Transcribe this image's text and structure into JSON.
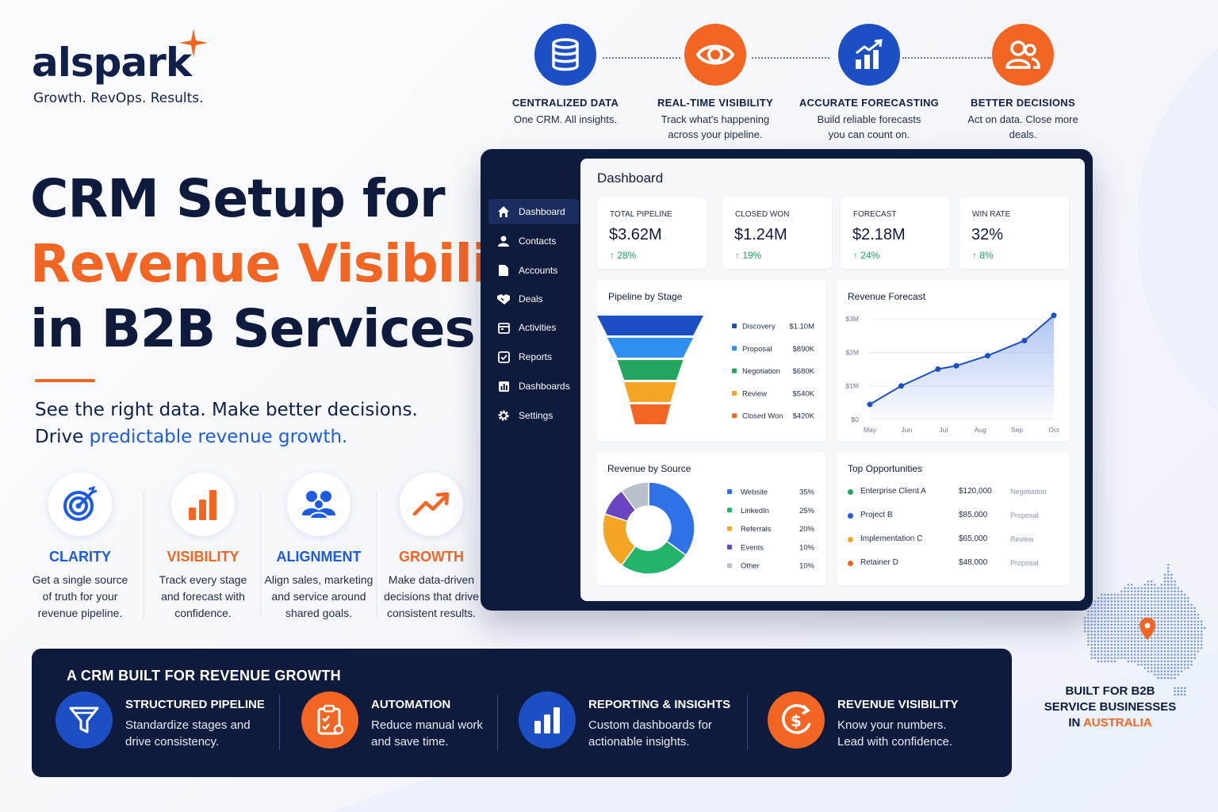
{
  "brand": {
    "name": "alspark",
    "tagline": "Growth. RevOps. Results."
  },
  "headline": {
    "line1": "CRM Setup for",
    "line2": "Revenue Visibility",
    "line3": "in B2B Services"
  },
  "subhead": {
    "line1": "See the right data. Make better decisions.",
    "line2_prefix": "Drive ",
    "line2_highlight": "predictable revenue growth."
  },
  "pillars": [
    {
      "title": "CLARITY",
      "icon": "target-icon",
      "color": "#1d5be0",
      "d1": "Get a single source",
      "d2": "of truth for your",
      "d3": "revenue pipeline."
    },
    {
      "title": "VISIBILITY",
      "icon": "bar-chart-icon",
      "color": "#f26522",
      "d1": "Track every stage",
      "d2": "and forecast with",
      "d3": "confidence."
    },
    {
      "title": "ALIGNMENT",
      "icon": "team-icon",
      "color": "#1d5be0",
      "d1": "Align sales, marketing",
      "d2": "and service around",
      "d3": "shared goals."
    },
    {
      "title": "GROWTH",
      "icon": "trend-up-icon",
      "color": "#f26522",
      "d1": "Make data-driven",
      "d2": "decisions that drive",
      "d3": "consistent results."
    }
  ],
  "steps": [
    {
      "title": "CENTRALIZED DATA",
      "d1": "One CRM. All insights.",
      "d2": "",
      "icon": "database-icon",
      "color": "#1d4fc4"
    },
    {
      "title": "REAL-TIME VISIBILITY",
      "d1": "Track what's happening",
      "d2": "across your pipeline.",
      "icon": "eye-icon",
      "color": "#f26522"
    },
    {
      "title": "ACCURATE FORECASTING",
      "d1": "Build reliable forecasts",
      "d2": "you can count on.",
      "icon": "growth-chart-icon",
      "color": "#1d4fc4"
    },
    {
      "title": "BETTER DECISIONS",
      "d1": "Act on data. Close more",
      "d2": "deals.",
      "icon": "users-icon",
      "color": "#f26522"
    }
  ],
  "dashboard": {
    "title": "Dashboard",
    "nav": [
      {
        "label": "Dashboard",
        "icon": "home-icon",
        "active": true
      },
      {
        "label": "Contacts",
        "icon": "person-icon"
      },
      {
        "label": "Accounts",
        "icon": "document-icon"
      },
      {
        "label": "Deals",
        "icon": "handshake-icon"
      },
      {
        "label": "Activities",
        "icon": "calendar-icon"
      },
      {
        "label": "Reports",
        "icon": "checkbox-icon"
      },
      {
        "label": "Dashboards",
        "icon": "dashboards-icon"
      },
      {
        "label": "Settings",
        "icon": "gear-icon"
      }
    ],
    "kpis": [
      {
        "label": "TOTAL PIPELINE",
        "value": "$3.62M",
        "change": "↑ 28%"
      },
      {
        "label": "CLOSED WON",
        "value": "$1.24M",
        "change": "↑ 19%"
      },
      {
        "label": "FORECAST",
        "value": "$2.18M",
        "change": "↑ 24%"
      },
      {
        "label": "WIN RATE",
        "value": "32%",
        "change": "↑ 8%"
      }
    ],
    "pipeline_title": "Pipeline by Stage",
    "forecast_title": "Revenue Forecast",
    "source_title": "Revenue by Source",
    "opps_title": "Top Opportunities",
    "opportunities": [
      {
        "name": "Enterprise Client A",
        "value": "$120,000",
        "stage": "Negotiation",
        "color": "#22a55e"
      },
      {
        "name": "Project B",
        "value": "$85,000",
        "stage": "Proposal",
        "color": "#1d5be0"
      },
      {
        "name": "Implementation C",
        "value": "$65,000",
        "stage": "Review",
        "color": "#f5a524"
      },
      {
        "name": "Retainer D",
        "value": "$48,000",
        "stage": "Proposal",
        "color": "#f26522"
      }
    ]
  },
  "chart_data": [
    {
      "type": "funnel",
      "title": "Pipeline by Stage",
      "categories": [
        "Discovery",
        "Proposal",
        "Negotiation",
        "Review",
        "Closed Won"
      ],
      "values": [
        1.1,
        0.89,
        0.68,
        0.54,
        0.42
      ],
      "value_labels": [
        "$1.10M",
        "$890K",
        "$680K",
        "$540K",
        "$420K"
      ],
      "colors": [
        "#1d4fc4",
        "#2f8ff0",
        "#22a55e",
        "#f5a524",
        "#f26522"
      ]
    },
    {
      "type": "area",
      "title": "Revenue Forecast",
      "x_ticks": [
        "May",
        "Jun",
        "Jul",
        "Aug",
        "Sep",
        "Oct"
      ],
      "y_ticks": [
        "$0",
        "$1M",
        "$2M",
        "$3M"
      ],
      "ylim": [
        0,
        3
      ],
      "x": [
        0,
        0.85,
        1.85,
        2.35,
        3.2,
        4.2,
        5.0
      ],
      "values": [
        0.45,
        1.0,
        1.5,
        1.6,
        1.9,
        2.35,
        3.1
      ],
      "color": "#1d4fc4"
    },
    {
      "type": "pie",
      "title": "Revenue by Source",
      "categories": [
        "Website",
        "LinkedIn",
        "Referrals",
        "Events",
        "Other"
      ],
      "values": [
        35,
        25,
        20,
        10,
        10
      ],
      "value_labels": [
        "35%",
        "25%",
        "20%",
        "10%",
        "10%"
      ],
      "colors": [
        "#2f72e8",
        "#22b46a",
        "#f5a524",
        "#6a45c2",
        "#b8bfcc"
      ]
    }
  ],
  "banner": {
    "title": "A CRM BUILT FOR REVENUE GROWTH",
    "features": [
      {
        "title": "STRUCTURED PIPELINE",
        "d1": "Standardize stages and",
        "d2": "drive consistency.",
        "icon": "funnel-icon",
        "color": "#1d4fc4"
      },
      {
        "title": "AUTOMATION",
        "d1": "Reduce manual work",
        "d2": "and save time.",
        "icon": "clipboard-check-icon",
        "color": "#f26522"
      },
      {
        "title": "REPORTING & INSIGHTS",
        "d1": "Custom dashboards for",
        "d2": "actionable insights.",
        "icon": "bars-icon",
        "color": "#1d4fc4"
      },
      {
        "title": "REVENUE VISIBILITY",
        "d1": "Know your numbers.",
        "d2": "Lead with confidence.",
        "icon": "dollar-cycle-icon",
        "color": "#f26522"
      }
    ]
  },
  "built": {
    "line1": "BUILT FOR B2B",
    "line2": "SERVICE BUSINESSES",
    "line3_prefix": "IN ",
    "line3_highlight": "AUSTRALIA"
  }
}
